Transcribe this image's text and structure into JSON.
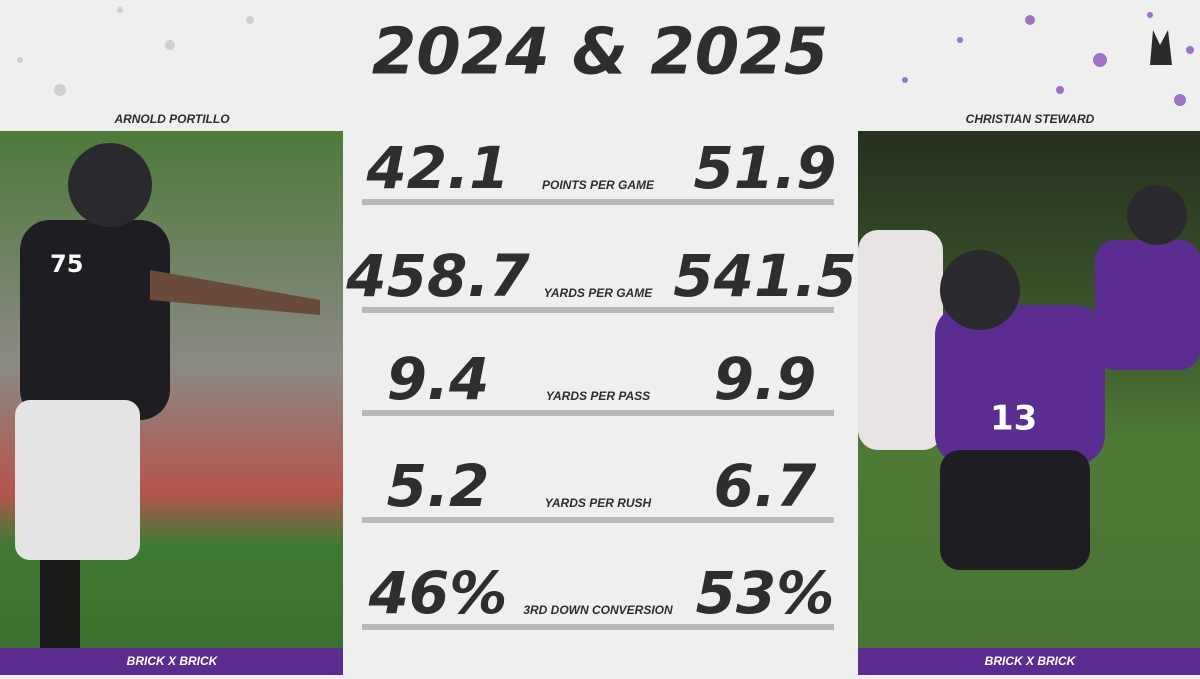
{
  "header": {
    "title": "2024 & 2025"
  },
  "left": {
    "name": "ARNOLD PORTILLO",
    "footer": "BRICK X BRICK"
  },
  "right": {
    "name": "CHRISTIAN STEWARD",
    "footer": "BRICK X BRICK"
  },
  "stats": [
    {
      "left": "42.1",
      "label": "POINTS PER GAME",
      "right": "51.9"
    },
    {
      "left": "458.7",
      "label": "YARDS PER GAME",
      "right": "541.5"
    },
    {
      "left": "9.4",
      "label": "YARDS PER PASS",
      "right": "9.9"
    },
    {
      "left": "5.2",
      "label": "YARDS PER RUSH",
      "right": "6.7"
    },
    {
      "left": "46%",
      "label": "3RD DOWN CONVERSION",
      "right": "53%"
    }
  ]
}
